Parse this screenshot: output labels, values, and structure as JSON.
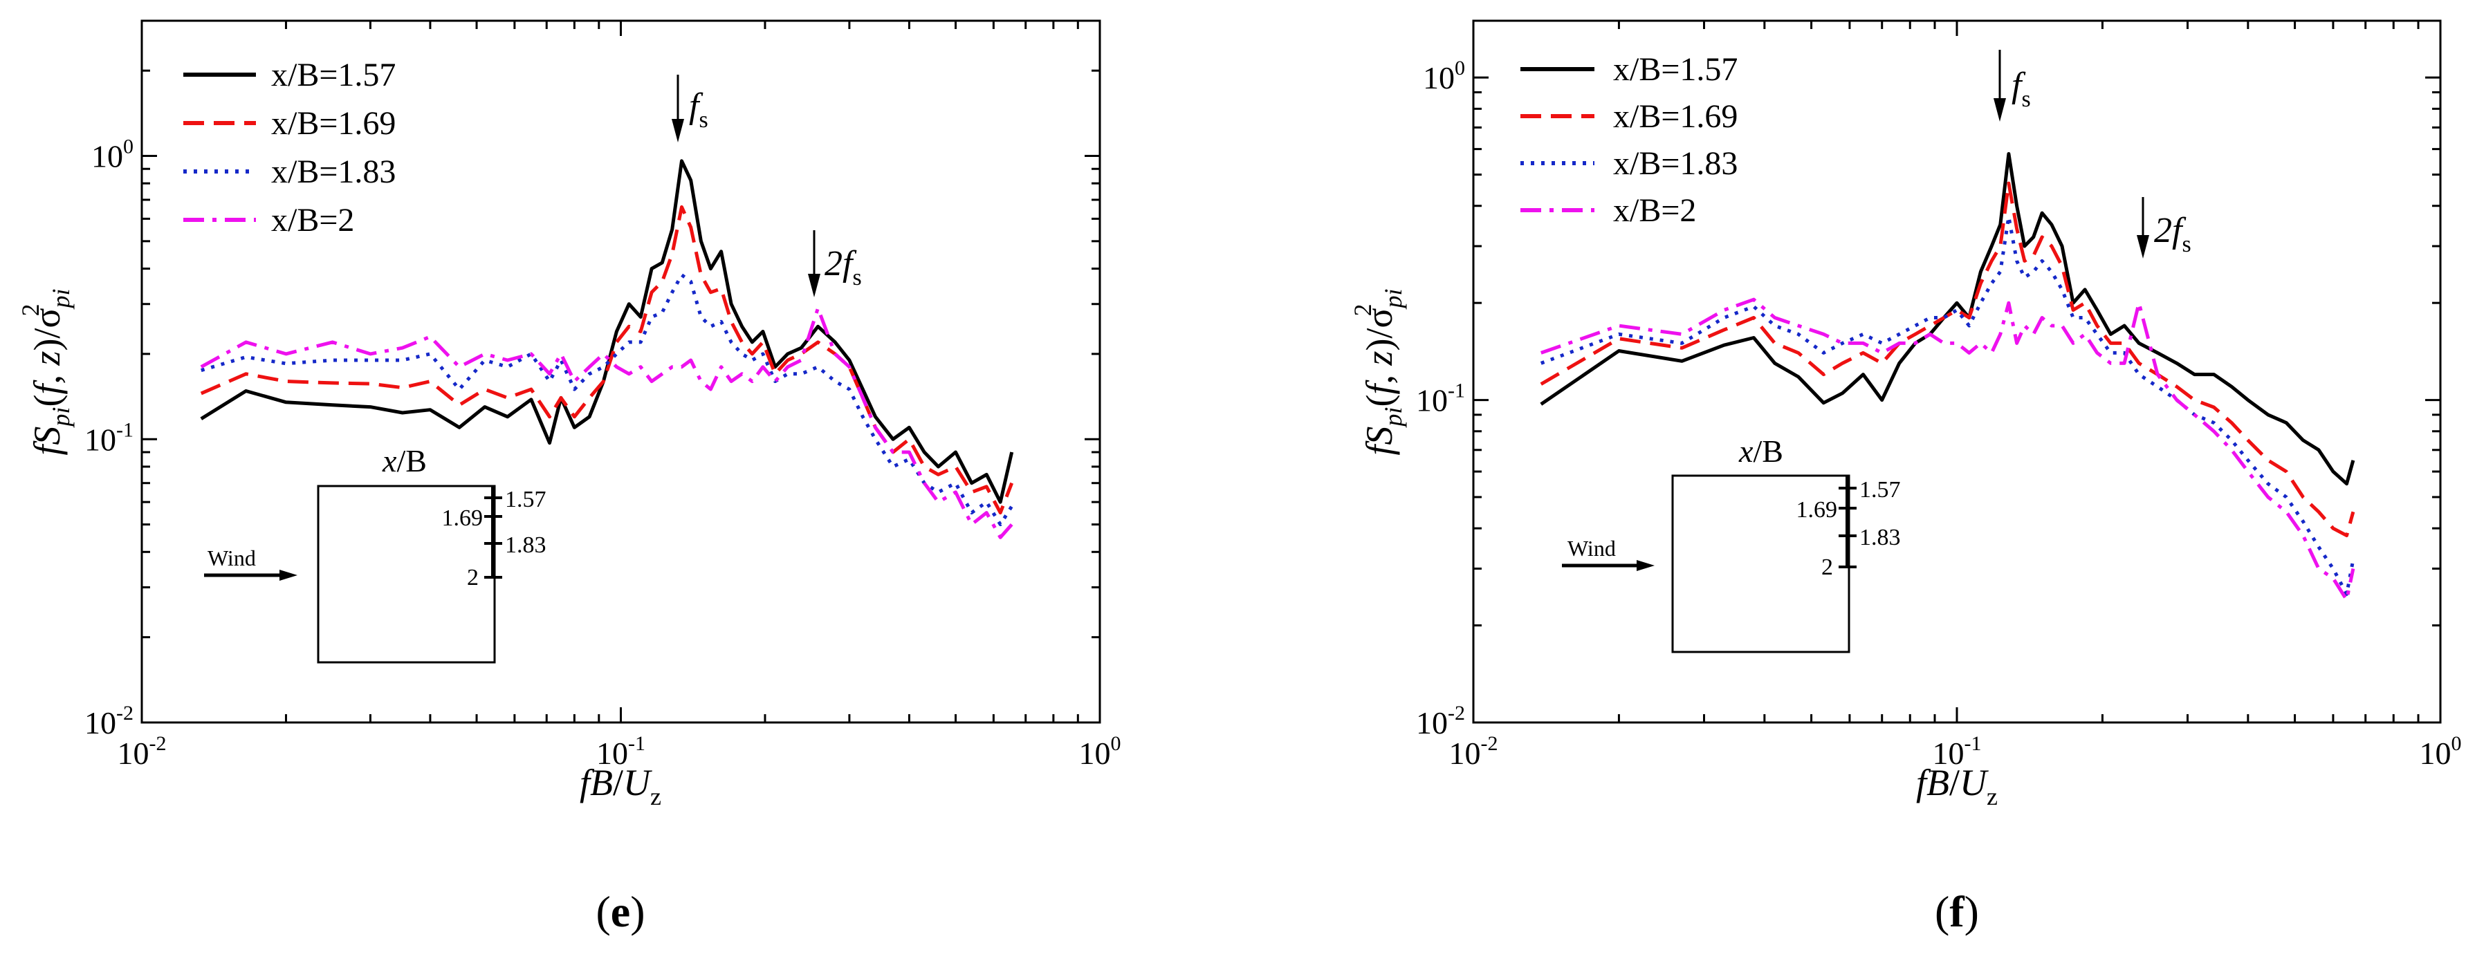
{
  "chart_data": [
    {
      "type": "line",
      "panel_label": "e",
      "xlabel": {
        "pre": "fB",
        "slash": "/",
        "main": "U",
        "sub": "z"
      },
      "ylabel": {
        "p1": "fS",
        "s1": "pi",
        "p2": "(",
        "i1": "f",
        "p3": ", ",
        "i2": "z",
        "p4": ")/σ",
        "s2": "pi",
        "sup": "2"
      },
      "xscale": "log",
      "yscale": "log",
      "xlim": [
        0.01,
        1
      ],
      "ylim": [
        0.01,
        3
      ],
      "xticks": [
        {
          "base": "10",
          "exp": "-2"
        },
        {
          "base": "10",
          "exp": "-1"
        },
        {
          "base": "10",
          "exp": "0"
        }
      ],
      "yticks": [
        {
          "base": "10",
          "exp": "-2"
        },
        {
          "base": "10",
          "exp": "-1"
        },
        {
          "base": "10",
          "exp": "0"
        }
      ],
      "legend": {
        "position": "top-left"
      },
      "annotations": [
        {
          "text": "f",
          "sub": "s",
          "x": 0.134,
          "y": 0.96
        },
        {
          "text": "2f",
          "sub": "s",
          "x": 0.258,
          "y": 0.29
        }
      ],
      "inset": {
        "title_italic": "x",
        "title_rest": "/B",
        "labels": [
          "1.57",
          "1.69",
          "1.83",
          "2"
        ],
        "wind_label": "Wind"
      },
      "series": [
        {
          "name": "x/B=1.57",
          "color": "#000000",
          "style": "solid",
          "x": [
            0.0133,
            0.0165,
            0.02,
            0.025,
            0.03,
            0.035,
            0.04,
            0.046,
            0.052,
            0.058,
            0.065,
            0.071,
            0.075,
            0.08,
            0.086,
            0.092,
            0.098,
            0.104,
            0.11,
            0.116,
            0.122,
            0.128,
            0.134,
            0.14,
            0.147,
            0.154,
            0.162,
            0.17,
            0.179,
            0.188,
            0.198,
            0.21,
            0.223,
            0.238,
            0.258,
            0.28,
            0.3,
            0.32,
            0.34,
            0.37,
            0.4,
            0.43,
            0.46,
            0.5,
            0.54,
            0.58,
            0.62,
            0.655
          ],
          "y": [
            0.118,
            0.148,
            0.135,
            0.132,
            0.13,
            0.124,
            0.127,
            0.11,
            0.13,
            0.12,
            0.138,
            0.097,
            0.14,
            0.11,
            0.12,
            0.16,
            0.24,
            0.3,
            0.27,
            0.4,
            0.42,
            0.55,
            0.96,
            0.82,
            0.5,
            0.4,
            0.46,
            0.3,
            0.25,
            0.22,
            0.24,
            0.18,
            0.2,
            0.21,
            0.25,
            0.22,
            0.19,
            0.15,
            0.12,
            0.1,
            0.11,
            0.09,
            0.08,
            0.09,
            0.07,
            0.075,
            0.06,
            0.09
          ]
        },
        {
          "name": "x/B=1.69",
          "color": "#ee1111",
          "style": "dashed",
          "x": [
            0.0133,
            0.0165,
            0.02,
            0.025,
            0.03,
            0.035,
            0.04,
            0.046,
            0.052,
            0.058,
            0.065,
            0.071,
            0.075,
            0.08,
            0.086,
            0.092,
            0.098,
            0.104,
            0.11,
            0.116,
            0.122,
            0.128,
            0.134,
            0.14,
            0.147,
            0.154,
            0.162,
            0.17,
            0.179,
            0.188,
            0.198,
            0.21,
            0.223,
            0.238,
            0.258,
            0.28,
            0.3,
            0.32,
            0.34,
            0.37,
            0.4,
            0.43,
            0.46,
            0.5,
            0.54,
            0.58,
            0.62,
            0.655
          ],
          "y": [
            0.145,
            0.17,
            0.16,
            0.158,
            0.157,
            0.152,
            0.16,
            0.132,
            0.15,
            0.14,
            0.15,
            0.12,
            0.14,
            0.12,
            0.14,
            0.16,
            0.22,
            0.25,
            0.24,
            0.33,
            0.36,
            0.45,
            0.66,
            0.56,
            0.38,
            0.33,
            0.34,
            0.26,
            0.22,
            0.2,
            0.22,
            0.17,
            0.19,
            0.2,
            0.22,
            0.2,
            0.18,
            0.14,
            0.11,
            0.09,
            0.1,
            0.08,
            0.075,
            0.08,
            0.065,
            0.068,
            0.055,
            0.07
          ]
        },
        {
          "name": "x/B=1.83",
          "color": "#1528c8",
          "style": "dotted",
          "x": [
            0.0133,
            0.0165,
            0.02,
            0.025,
            0.03,
            0.035,
            0.04,
            0.046,
            0.052,
            0.058,
            0.065,
            0.071,
            0.075,
            0.08,
            0.086,
            0.092,
            0.098,
            0.104,
            0.11,
            0.116,
            0.122,
            0.128,
            0.134,
            0.14,
            0.147,
            0.154,
            0.162,
            0.17,
            0.179,
            0.188,
            0.198,
            0.21,
            0.223,
            0.238,
            0.258,
            0.28,
            0.3,
            0.32,
            0.34,
            0.37,
            0.4,
            0.43,
            0.46,
            0.5,
            0.54,
            0.58,
            0.62,
            0.655
          ],
          "y": [
            0.175,
            0.195,
            0.185,
            0.19,
            0.19,
            0.19,
            0.2,
            0.15,
            0.19,
            0.18,
            0.2,
            0.16,
            0.19,
            0.15,
            0.17,
            0.18,
            0.2,
            0.22,
            0.22,
            0.27,
            0.28,
            0.33,
            0.38,
            0.36,
            0.27,
            0.25,
            0.26,
            0.22,
            0.2,
            0.19,
            0.2,
            0.16,
            0.17,
            0.17,
            0.18,
            0.16,
            0.15,
            0.12,
            0.1,
            0.08,
            0.085,
            0.07,
            0.065,
            0.07,
            0.055,
            0.06,
            0.05,
            0.058
          ]
        },
        {
          "name": "x/B=2",
          "color": "#ee11ee",
          "style": "dashdot",
          "x": [
            0.0133,
            0.0165,
            0.02,
            0.025,
            0.03,
            0.035,
            0.04,
            0.046,
            0.052,
            0.058,
            0.065,
            0.071,
            0.075,
            0.08,
            0.086,
            0.092,
            0.098,
            0.104,
            0.11,
            0.116,
            0.122,
            0.128,
            0.134,
            0.14,
            0.147,
            0.154,
            0.162,
            0.17,
            0.179,
            0.188,
            0.198,
            0.21,
            0.223,
            0.238,
            0.258,
            0.28,
            0.3,
            0.32,
            0.34,
            0.37,
            0.4,
            0.43,
            0.46,
            0.5,
            0.54,
            0.58,
            0.62,
            0.655
          ],
          "y": [
            0.18,
            0.22,
            0.2,
            0.22,
            0.2,
            0.21,
            0.23,
            0.18,
            0.2,
            0.19,
            0.2,
            0.17,
            0.2,
            0.16,
            0.18,
            0.2,
            0.18,
            0.17,
            0.18,
            0.16,
            0.17,
            0.18,
            0.18,
            0.19,
            0.16,
            0.15,
            0.18,
            0.16,
            0.17,
            0.16,
            0.18,
            0.16,
            0.18,
            0.19,
            0.29,
            0.2,
            0.18,
            0.14,
            0.11,
            0.09,
            0.09,
            0.07,
            0.06,
            0.065,
            0.05,
            0.055,
            0.045,
            0.05
          ]
        }
      ]
    },
    {
      "type": "line",
      "panel_label": "f",
      "xlabel": {
        "pre": "fB",
        "slash": "/",
        "main": "U",
        "sub": "z"
      },
      "ylabel": {
        "p1": "fS",
        "s1": "pi",
        "p2": "(",
        "i1": "f",
        "p3": ", ",
        "i2": "z",
        "p4": ")/σ",
        "s2": "pi",
        "sup": "2"
      },
      "xscale": "log",
      "yscale": "log",
      "xlim": [
        0.01,
        1
      ],
      "ylim": [
        0.01,
        1.5
      ],
      "xticks": [
        {
          "base": "10",
          "exp": "-2"
        },
        {
          "base": "10",
          "exp": "-1"
        },
        {
          "base": "10",
          "exp": "0"
        }
      ],
      "yticks": [
        {
          "base": "10",
          "exp": "-2"
        },
        {
          "base": "10",
          "exp": "-1"
        },
        {
          "base": "10",
          "exp": "0"
        }
      ],
      "legend": {
        "position": "top-left"
      },
      "annotations": [
        {
          "text": "f",
          "sub": "s",
          "x": 0.128,
          "y": 0.58
        },
        {
          "text": "2f",
          "sub": "s",
          "x": 0.248,
          "y": 0.2
        }
      ],
      "inset": {
        "title_italic": "x",
        "title_rest": "/B",
        "labels": [
          "1.57",
          "1.69",
          "1.83",
          "2"
        ],
        "wind_label": "Wind"
      },
      "series": [
        {
          "name": "x/B=1.57",
          "color": "#000000",
          "style": "solid",
          "x": [
            0.0138,
            0.02,
            0.027,
            0.033,
            0.038,
            0.042,
            0.047,
            0.053,
            0.058,
            0.064,
            0.07,
            0.076,
            0.082,
            0.088,
            0.094,
            0.1,
            0.106,
            0.112,
            0.118,
            0.123,
            0.128,
            0.133,
            0.138,
            0.144,
            0.15,
            0.157,
            0.165,
            0.174,
            0.184,
            0.195,
            0.208,
            0.222,
            0.238,
            0.26,
            0.285,
            0.31,
            0.34,
            0.37,
            0.4,
            0.44,
            0.48,
            0.52,
            0.56,
            0.6,
            0.64,
            0.66
          ],
          "y": [
            0.097,
            0.142,
            0.132,
            0.148,
            0.156,
            0.13,
            0.118,
            0.098,
            0.105,
            0.12,
            0.1,
            0.13,
            0.15,
            0.16,
            0.18,
            0.2,
            0.18,
            0.25,
            0.3,
            0.35,
            0.58,
            0.4,
            0.3,
            0.32,
            0.38,
            0.35,
            0.3,
            0.2,
            0.22,
            0.19,
            0.16,
            0.17,
            0.15,
            0.14,
            0.13,
            0.12,
            0.12,
            0.11,
            0.1,
            0.09,
            0.085,
            0.075,
            0.07,
            0.06,
            0.055,
            0.065
          ]
        },
        {
          "name": "x/B=1.69",
          "color": "#ee1111",
          "style": "dashed",
          "x": [
            0.0138,
            0.02,
            0.027,
            0.033,
            0.038,
            0.042,
            0.047,
            0.053,
            0.058,
            0.064,
            0.07,
            0.076,
            0.082,
            0.088,
            0.094,
            0.1,
            0.106,
            0.112,
            0.118,
            0.123,
            0.128,
            0.133,
            0.138,
            0.144,
            0.15,
            0.157,
            0.165,
            0.174,
            0.184,
            0.195,
            0.208,
            0.222,
            0.238,
            0.26,
            0.285,
            0.31,
            0.34,
            0.37,
            0.4,
            0.44,
            0.48,
            0.52,
            0.56,
            0.6,
            0.64,
            0.66
          ],
          "y": [
            0.112,
            0.155,
            0.145,
            0.165,
            0.18,
            0.15,
            0.14,
            0.12,
            0.13,
            0.14,
            0.13,
            0.15,
            0.16,
            0.17,
            0.18,
            0.19,
            0.18,
            0.23,
            0.27,
            0.3,
            0.47,
            0.34,
            0.27,
            0.28,
            0.32,
            0.3,
            0.26,
            0.19,
            0.2,
            0.17,
            0.15,
            0.15,
            0.13,
            0.12,
            0.11,
            0.1,
            0.095,
            0.085,
            0.075,
            0.065,
            0.06,
            0.05,
            0.045,
            0.04,
            0.038,
            0.045
          ]
        },
        {
          "name": "x/B=1.83",
          "color": "#1528c8",
          "style": "dotted",
          "x": [
            0.0138,
            0.02,
            0.027,
            0.033,
            0.038,
            0.042,
            0.047,
            0.053,
            0.058,
            0.064,
            0.07,
            0.076,
            0.082,
            0.088,
            0.094,
            0.1,
            0.106,
            0.112,
            0.118,
            0.123,
            0.128,
            0.133,
            0.138,
            0.144,
            0.15,
            0.157,
            0.165,
            0.174,
            0.184,
            0.195,
            0.208,
            0.222,
            0.238,
            0.26,
            0.285,
            0.31,
            0.34,
            0.37,
            0.4,
            0.44,
            0.48,
            0.52,
            0.56,
            0.6,
            0.64,
            0.66
          ],
          "y": [
            0.13,
            0.16,
            0.15,
            0.18,
            0.195,
            0.17,
            0.16,
            0.14,
            0.15,
            0.16,
            0.15,
            0.16,
            0.17,
            0.18,
            0.18,
            0.19,
            0.17,
            0.2,
            0.23,
            0.25,
            0.37,
            0.27,
            0.24,
            0.25,
            0.27,
            0.25,
            0.22,
            0.18,
            0.18,
            0.16,
            0.14,
            0.14,
            0.12,
            0.11,
            0.1,
            0.09,
            0.085,
            0.075,
            0.065,
            0.055,
            0.05,
            0.042,
            0.035,
            0.03,
            0.025,
            0.032
          ]
        },
        {
          "name": "x/B=2",
          "color": "#ee11ee",
          "style": "dashdot",
          "x": [
            0.0138,
            0.02,
            0.027,
            0.033,
            0.038,
            0.042,
            0.047,
            0.053,
            0.058,
            0.064,
            0.07,
            0.076,
            0.082,
            0.088,
            0.094,
            0.1,
            0.106,
            0.112,
            0.118,
            0.123,
            0.128,
            0.133,
            0.138,
            0.144,
            0.15,
            0.157,
            0.165,
            0.174,
            0.184,
            0.195,
            0.208,
            0.222,
            0.238,
            0.26,
            0.285,
            0.31,
            0.34,
            0.37,
            0.4,
            0.44,
            0.48,
            0.52,
            0.56,
            0.6,
            0.64,
            0.66
          ],
          "y": [
            0.14,
            0.17,
            0.16,
            0.19,
            0.205,
            0.18,
            0.17,
            0.16,
            0.15,
            0.15,
            0.14,
            0.15,
            0.15,
            0.16,
            0.15,
            0.15,
            0.14,
            0.15,
            0.14,
            0.16,
            0.2,
            0.15,
            0.17,
            0.16,
            0.18,
            0.17,
            0.17,
            0.15,
            0.16,
            0.14,
            0.13,
            0.13,
            0.2,
            0.12,
            0.1,
            0.09,
            0.08,
            0.07,
            0.06,
            0.05,
            0.045,
            0.038,
            0.03,
            0.028,
            0.024,
            0.03
          ]
        }
      ]
    }
  ]
}
